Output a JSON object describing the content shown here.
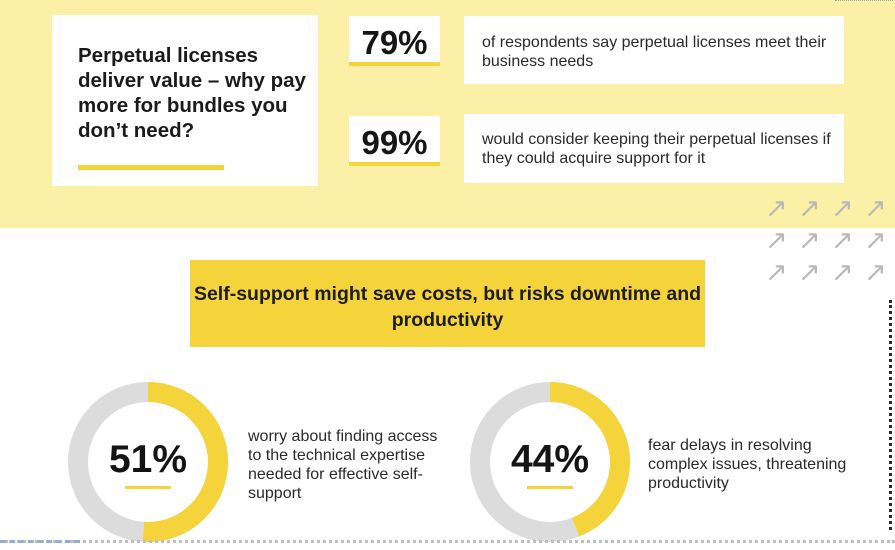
{
  "intro": {
    "title": "Perpetual licenses deliver value – why pay more for bundles you don’t need?"
  },
  "stats": [
    {
      "value": "79%",
      "text": "of respondents say perpetual licenses meet their business needs"
    },
    {
      "value": "99%",
      "text": "would consider keeping their perpetual licenses if they could acquire support for it"
    }
  ],
  "banner": {
    "text": "Self-support might save costs, but risks downtime and productivity"
  },
  "rings": [
    {
      "value": "51%",
      "fraction": 0.51,
      "text": "worry about finding access to the technical expertise needed for effective self-support"
    },
    {
      "value": "44%",
      "fraction": 0.44,
      "text": "fear delays in resolving complex issues, threatening productivity"
    }
  ],
  "decor": {
    "arrow_icon": "↗",
    "arrow_icon_name": "diagonal-arrow-icon"
  },
  "colors": {
    "band": "#fbf0a6",
    "accent": "#f5d33a",
    "ring_track": "#dcdcdc"
  }
}
